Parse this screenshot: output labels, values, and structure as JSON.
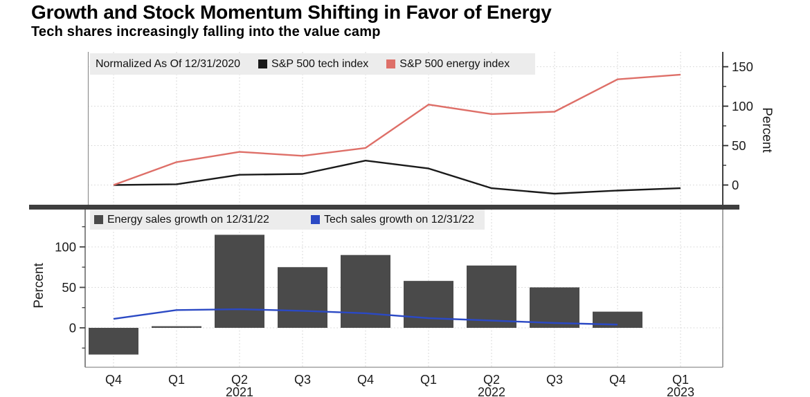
{
  "header": {
    "title": "Growth and Stock Momentum Shifting in Favor of Energy",
    "subtitle": "Tech shares increasingly falling into the value camp"
  },
  "x_axis": {
    "quarter_labels": [
      "Q4",
      "Q1",
      "Q2",
      "Q3",
      "Q4",
      "Q1",
      "Q2",
      "Q3",
      "Q4",
      "Q1"
    ],
    "year_labels": [
      {
        "text": "2021",
        "index": 2
      },
      {
        "text": "2022",
        "index": 6
      },
      {
        "text": "2023",
        "index": 9
      }
    ]
  },
  "chart_data": [
    {
      "type": "line",
      "panel": "top",
      "legend_note": "Normalized As Of 12/31/2020",
      "legend_position": "top-left",
      "grid": true,
      "axis_side": "right",
      "categories": [
        "Q4 2020",
        "Q1 2021",
        "Q2 2021",
        "Q3 2021",
        "Q4 2021",
        "Q1 2022",
        "Q2 2022",
        "Q3 2022",
        "Q4 2022",
        "Q1 2023"
      ],
      "series": [
        {
          "name": "S&P 500 tech index",
          "color": "#1a1a1a",
          "values": [
            0,
            1,
            13,
            14,
            31,
            21,
            -4,
            -11,
            -7,
            -4
          ]
        },
        {
          "name": "S&P 500 energy index",
          "color": "#de6f68",
          "values": [
            0,
            29,
            42,
            37,
            47,
            102,
            90,
            93,
            134,
            140
          ]
        }
      ],
      "ylabel": "Percent",
      "yticks": [
        0,
        50,
        100,
        150
      ],
      "yticks_minor": [
        25,
        75,
        125
      ],
      "ylim": [
        -25,
        172
      ]
    },
    {
      "type": "bar",
      "panel": "bottom",
      "legend_position": "top-left",
      "grid": true,
      "axis_side": "left",
      "categories": [
        "Q4 2020",
        "Q1 2021",
        "Q2 2021",
        "Q3 2021",
        "Q4 2021",
        "Q1 2022",
        "Q2 2022",
        "Q3 2022",
        "Q4 2022"
      ],
      "series": [
        {
          "name": "Energy sales growth on 12/31/22",
          "type": "bar",
          "color": "#4a4a4a",
          "values": [
            -33,
            2,
            115,
            75,
            90,
            58,
            77,
            50,
            20
          ]
        },
        {
          "name": "Tech sales growth on 12/31/22",
          "type": "line",
          "color": "#2b49c4",
          "values": [
            11,
            22,
            23,
            21,
            18,
            12,
            9,
            6,
            4
          ]
        }
      ],
      "ylabel": "Percent",
      "yticks": [
        0,
        50,
        100
      ],
      "yticks_minor": [
        -25,
        25,
        75,
        125
      ],
      "ylim": [
        -50,
        123
      ]
    }
  ]
}
